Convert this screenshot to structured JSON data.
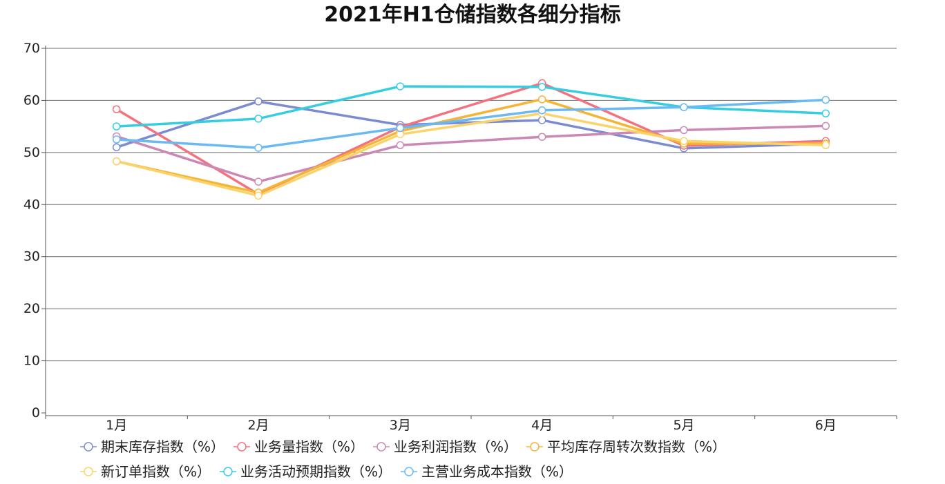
{
  "chart_data": {
    "type": "line",
    "title": "2021年H1仓储指数各细分指标",
    "categories": [
      "1月",
      "2月",
      "3月",
      "4月",
      "5月",
      "6月"
    ],
    "ylim": [
      0,
      70
    ],
    "yticks": [
      0,
      10,
      20,
      30,
      40,
      50,
      60,
      70
    ],
    "grid": true,
    "legend_position": "bottom",
    "series": [
      {
        "name": "期末库存指数（%）",
        "color": "#7b8bd0",
        "values": [
          51.0,
          59.8,
          55.3,
          56.2,
          50.8,
          51.7
        ]
      },
      {
        "name": "业务量指数（%）",
        "color": "#f4717e",
        "values": [
          58.3,
          42.0,
          54.9,
          63.3,
          51.3,
          52.2
        ]
      },
      {
        "name": "业务利润指数（%）",
        "color": "#cc88b4",
        "values": [
          53.1,
          44.4,
          51.4,
          53.0,
          54.3,
          55.1
        ]
      },
      {
        "name": "平均库存周转次数指数（%）",
        "color": "#f5b435",
        "values": [
          48.3,
          42.3,
          54.1,
          60.2,
          51.7,
          51.7
        ]
      },
      {
        "name": "新订单指数（%）",
        "color": "#fad46a",
        "values": [
          48.3,
          41.7,
          53.5,
          57.5,
          52.2,
          51.4
        ]
      },
      {
        "name": "业务活动预期指数（%）",
        "color": "#35cde0",
        "values": [
          55.0,
          56.5,
          62.7,
          62.6,
          58.7,
          57.5
        ]
      },
      {
        "name": "主营业务成本指数（%）",
        "color": "#6ab9f3",
        "values": [
          52.5,
          50.9,
          54.7,
          58.1,
          58.7,
          60.1
        ]
      }
    ]
  }
}
